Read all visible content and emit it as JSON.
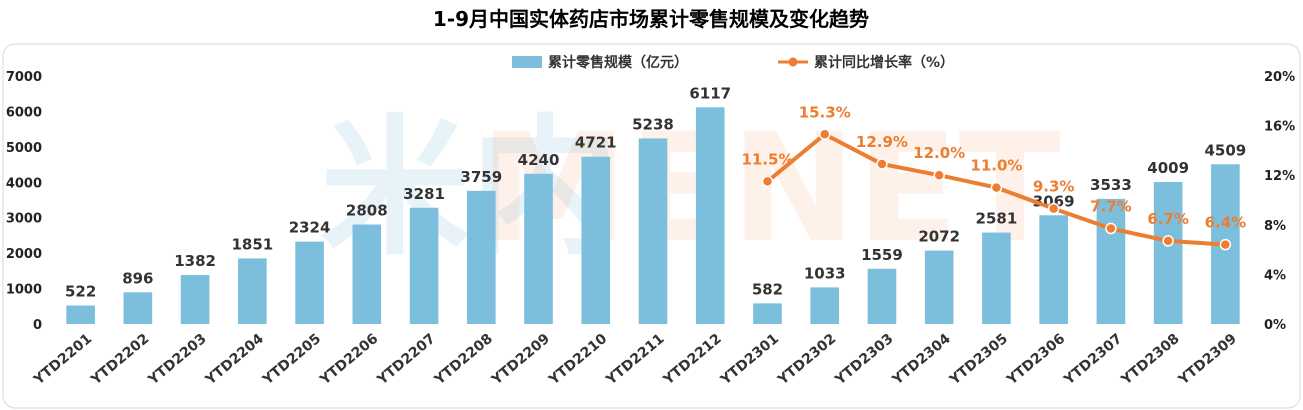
{
  "chart_data": {
    "type": "bar+line",
    "title": "1-9月中国实体药店市场累计零售规模及变化趋势",
    "watermark": {
      "left": "米内",
      "right": "MENET"
    },
    "categories": [
      "YTD2201",
      "YTD2202",
      "YTD2203",
      "YTD2204",
      "YTD2205",
      "YTD2206",
      "YTD2207",
      "YTD2208",
      "YTD2209",
      "YTD2210",
      "YTD2211",
      "YTD2212",
      "YTD2301",
      "YTD2302",
      "YTD2303",
      "YTD2304",
      "YTD2305",
      "YTD2306",
      "YTD2307",
      "YTD2308",
      "YTD2309"
    ],
    "bar_series": {
      "name": "累计零售规模（亿元）",
      "color": "#7CBFDD",
      "values": [
        522,
        896,
        1382,
        1851,
        2324,
        2808,
        3281,
        3759,
        4240,
        4721,
        5238,
        6117,
        582,
        1033,
        1559,
        2072,
        2581,
        3069,
        3533,
        4009,
        4509
      ],
      "labels": [
        "522",
        "896",
        "1382",
        "1851",
        "2324",
        "2808",
        "3281",
        "3759",
        "4240",
        "4721",
        "5238",
        "6117",
        "582",
        "1033",
        "1559",
        "2072",
        "2581",
        "3069",
        "3533",
        "4009",
        "4509"
      ]
    },
    "line_series": {
      "name": "累计同比增长率（%）",
      "color": "#ED7D31",
      "start_index": 12,
      "values": [
        11.5,
        15.3,
        12.9,
        12.0,
        11.0,
        9.3,
        7.7,
        6.7,
        6.4
      ],
      "labels": [
        "11.5%",
        "15.3%",
        "12.9%",
        "12.0%",
        "11.0%",
        "9.3%",
        "7.7%",
        "6.7%",
        "6.4%"
      ]
    },
    "y_left": {
      "min": 0,
      "max": 7000,
      "ticks": [
        "0",
        "1000",
        "2000",
        "3000",
        "4000",
        "5000",
        "6000",
        "7000"
      ]
    },
    "y_right": {
      "min": 0,
      "max": 20,
      "ticks": [
        "0%",
        "4%",
        "8%",
        "12%",
        "16%",
        "20%"
      ]
    },
    "legend_placement": "top-center",
    "grid": false
  }
}
